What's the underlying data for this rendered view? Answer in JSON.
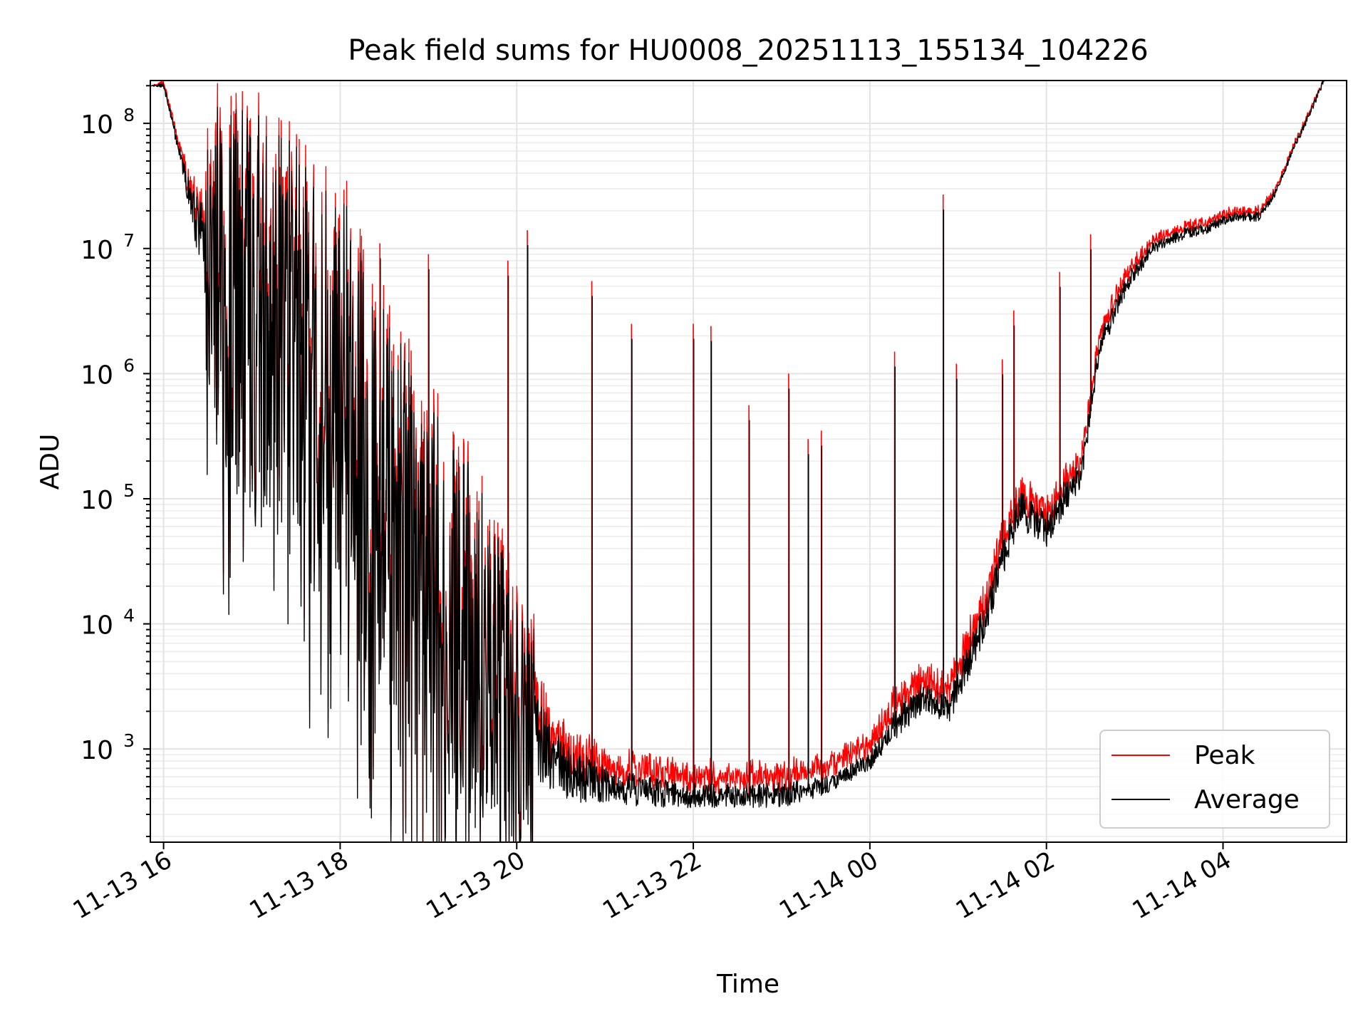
{
  "chart_data": {
    "type": "line",
    "title": "Peak field sums for HU0008_20251113_155134_104226",
    "xlabel": "Time",
    "ylabel": "ADU",
    "yscale": "log",
    "ylim": [
      180,
      220000000
    ],
    "xlim_hours": [
      15.85,
      29.4
    ],
    "grid": true,
    "legend_position": "lower-right",
    "x_ticks": [
      {
        "hour": 16,
        "label": "11-13 16"
      },
      {
        "hour": 18,
        "label": "11-13 18"
      },
      {
        "hour": 20,
        "label": "11-13 20"
      },
      {
        "hour": 22,
        "label": "11-13 22"
      },
      {
        "hour": 24,
        "label": "11-14 00"
      },
      {
        "hour": 26,
        "label": "11-14 02"
      },
      {
        "hour": 28,
        "label": "11-14 04"
      }
    ],
    "y_ticks": [
      {
        "value": 1000,
        "base": "10",
        "exp": "3"
      },
      {
        "value": 10000,
        "base": "10",
        "exp": "4"
      },
      {
        "value": 100000,
        "base": "10",
        "exp": "5"
      },
      {
        "value": 1000000,
        "base": "10",
        "exp": "6"
      },
      {
        "value": 10000000,
        "base": "10",
        "exp": "7"
      },
      {
        "value": 100000000,
        "base": "10",
        "exp": "8"
      }
    ],
    "envelope": {
      "hour": [
        15.86,
        16.0,
        16.2,
        16.4,
        16.6,
        17.0,
        17.5,
        18.0,
        18.5,
        19.0,
        19.5,
        20.0,
        20.5,
        21.0,
        21.5,
        22.0,
        22.5,
        23.0,
        23.5,
        24.0,
        24.3,
        24.6,
        24.9,
        25.0,
        25.3,
        25.5,
        25.7,
        26.0,
        26.2,
        26.4,
        26.6,
        26.9,
        27.2,
        27.5,
        27.8,
        28.1,
        28.4,
        28.6,
        28.8,
        29.0,
        29.15
      ],
      "average_log10_base": [
        8.3,
        8.3,
        7.7,
        7.1,
        6.7,
        6.45,
        6.2,
        5.7,
        5.0,
        4.3,
        3.8,
        3.3,
        2.8,
        2.7,
        2.65,
        2.62,
        2.62,
        2.62,
        2.7,
        2.9,
        3.2,
        3.4,
        3.3,
        3.5,
        4.0,
        4.5,
        4.9,
        4.75,
        5.0,
        5.2,
        6.2,
        6.7,
        7.0,
        7.1,
        7.15,
        7.25,
        7.25,
        7.45,
        7.8,
        8.1,
        8.35
      ],
      "noise_dex": [
        0.0,
        0.05,
        0.1,
        0.5,
        1.3,
        1.5,
        1.6,
        1.6,
        1.5,
        1.4,
        1.3,
        1.0,
        0.5,
        0.3,
        0.25,
        0.2,
        0.2,
        0.2,
        0.15,
        0.15,
        0.25,
        0.25,
        0.2,
        0.3,
        0.3,
        0.3,
        0.3,
        0.3,
        0.3,
        0.2,
        0.2,
        0.15,
        0.1,
        0.1,
        0.08,
        0.08,
        0.08,
        0.05,
        0.05,
        0.05,
        0.05
      ],
      "peak_offset_dex": [
        0.0,
        0.02,
        0.05,
        0.1,
        0.15,
        0.15,
        0.15,
        0.15,
        0.15,
        0.15,
        0.15,
        0.15,
        0.15,
        0.15,
        0.15,
        0.15,
        0.15,
        0.15,
        0.15,
        0.15,
        0.15,
        0.15,
        0.15,
        0.15,
        0.15,
        0.15,
        0.12,
        0.12,
        0.12,
        0.1,
        0.1,
        0.08,
        0.06,
        0.05,
        0.05,
        0.04,
        0.04,
        0.03,
        0.02,
        0.02,
        0.0
      ]
    },
    "spikes": [
      {
        "hour": 17.2,
        "peak": 15000000
      },
      {
        "hour": 17.55,
        "peak": 13000000
      },
      {
        "hour": 18.45,
        "peak": 11000000
      },
      {
        "hour": 19.0,
        "peak": 9000000
      },
      {
        "hour": 19.9,
        "peak": 8000000
      },
      {
        "hour": 20.12,
        "peak": 14000000
      },
      {
        "hour": 20.85,
        "peak": 5500000
      },
      {
        "hour": 21.3,
        "peak": 2500000
      },
      {
        "hour": 22.0,
        "peak": 2500000
      },
      {
        "hour": 22.2,
        "peak": 2400000
      },
      {
        "hour": 22.63,
        "peak": 560000
      },
      {
        "hour": 23.08,
        "peak": 1000000
      },
      {
        "hour": 23.3,
        "peak": 300000
      },
      {
        "hour": 23.45,
        "peak": 350000
      },
      {
        "hour": 24.28,
        "peak": 1500000
      },
      {
        "hour": 24.83,
        "peak": 27000000
      },
      {
        "hour": 24.98,
        "peak": 1200000
      },
      {
        "hour": 25.5,
        "peak": 1300000
      },
      {
        "hour": 25.63,
        "peak": 3200000
      },
      {
        "hour": 26.15,
        "peak": 6500000
      },
      {
        "hour": 26.5,
        "peak": 13000000
      }
    ],
    "series": [
      {
        "name": "Peak",
        "color": "#ff0000"
      },
      {
        "name": "Average",
        "color": "#000000"
      }
    ]
  }
}
